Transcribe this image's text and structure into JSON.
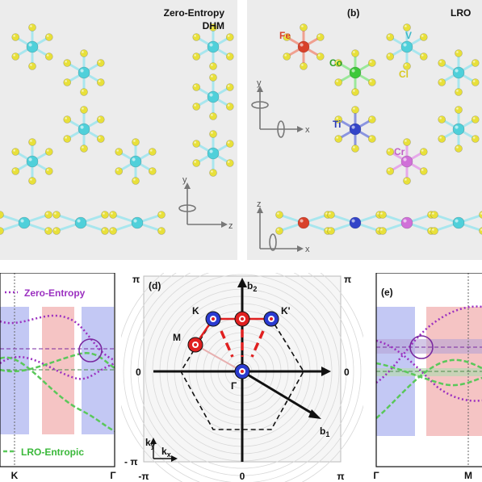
{
  "panel_a": {
    "title_line1": "Zero-Entropy",
    "title_line2": "DHM",
    "axis_y": "y",
    "axis_z": "z"
  },
  "panel_b": {
    "label": "(b)",
    "title": "LRO",
    "atoms": {
      "fe": "Fe",
      "co": "Co",
      "v": "V",
      "cl": "Cl",
      "ti": "Ti",
      "cr": "Cr"
    },
    "axis_y": "y",
    "axis_x": "x",
    "axis_z": "z",
    "axis_x2": "x",
    "colors": {
      "fe": "#d8412a",
      "co": "#3ec83a",
      "v": "#4fd0da",
      "cl": "#e8e03a",
      "ti": "#3344c8",
      "cr": "#d070d8"
    }
  },
  "panel_c": {
    "legend_top": "Zero-Entropy",
    "legend_bottom": "LRO-Entropic",
    "tick_k": "K",
    "tick_gamma": "Γ"
  },
  "panel_d": {
    "label": "(d)",
    "pi_top_left": "π",
    "pi_top_right": "π",
    "zero_left": "0",
    "zero_right": "0",
    "minus_pi_left": "- π",
    "tick_minus_pi": "-π",
    "tick_zero": "0",
    "tick_pi": "π",
    "b2": "b",
    "b2_sub": "2",
    "b1": "b",
    "b1_sub": "1",
    "point_k": "K",
    "point_kprime": "K'",
    "point_m": "M",
    "point_gamma": "Γ",
    "ky": "k",
    "ky_sub": "y",
    "kx": "k",
    "kx_sub": "x"
  },
  "panel_e": {
    "label": "(e)",
    "tick_gamma": "Γ",
    "tick_m": "M"
  }
}
